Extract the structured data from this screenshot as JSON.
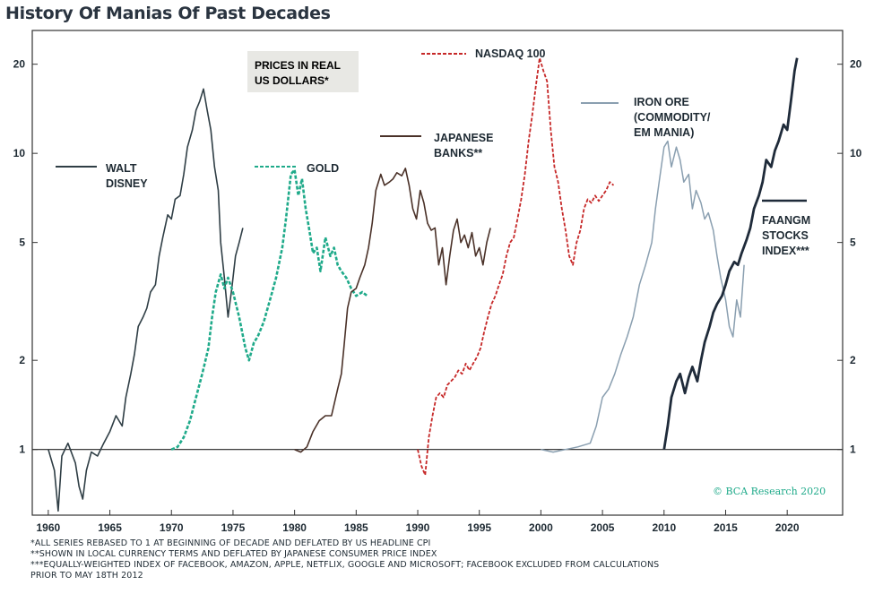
{
  "title": "History Of Manias Of Past Decades",
  "box_note": [
    "PRICES IN REAL",
    "US DOLLARS*"
  ],
  "watermark": "© BCA Research 2020",
  "footnotes": [
    "*ALL SERIES REBASED TO 1 AT BEGINNING OF DECADE AND DEFLATED BY US HEADLINE CPI",
    "**SHOWN IN LOCAL CURRENCY TERMS AND DEFLATED BY JAPANESE CONSUMER PRICE INDEX",
    "***EQUALLY-WEIGHTED INDEX OF FACEBOOK, AMAZON, APPLE, NETFLIX, GOOGLE AND MICROSOFT; FACEBOOK EXCLUDED FROM CALCULATIONS",
    "PRIOR TO MAY 18TH 2012"
  ],
  "colors": {
    "walt_disney": "#2f3e45",
    "gold": "#1faa8a",
    "japanese_banks": "#4a3128",
    "nasdaq": "#c62828",
    "iron_ore": "#8a9fb0",
    "faangm": "#1f2b3a",
    "axis": "#333333",
    "note_box": "#e8e8e4"
  },
  "chart_data": {
    "type": "line",
    "title": "History Of Manias Of Past Decades",
    "yscale": "log",
    "xlim": [
      1958.7,
      2024.5
    ],
    "ylim": [
      0.6,
      26
    ],
    "xticks": [
      "1960",
      "1965",
      "1970",
      "1975",
      "1980",
      "1985",
      "1990",
      "1995",
      "2000",
      "2005",
      "2010",
      "2015",
      "2020"
    ],
    "yticks": [
      "1",
      "2",
      "5",
      "10",
      "20"
    ],
    "series": [
      {
        "name": "WALT DISNEY",
        "style": "solid",
        "label": [
          "WALT",
          "DISNEY"
        ],
        "points": [
          [
            1960,
            1.0
          ],
          [
            1960.5,
            0.85
          ],
          [
            1960.8,
            0.62
          ],
          [
            1961.1,
            0.95
          ],
          [
            1961.6,
            1.05
          ],
          [
            1962.2,
            0.9
          ],
          [
            1962.5,
            0.75
          ],
          [
            1962.8,
            0.68
          ],
          [
            1963.1,
            0.85
          ],
          [
            1963.5,
            0.98
          ],
          [
            1964,
            0.95
          ],
          [
            1964.5,
            1.05
          ],
          [
            1965,
            1.15
          ],
          [
            1965.5,
            1.3
          ],
          [
            1966,
            1.2
          ],
          [
            1966.3,
            1.5
          ],
          [
            1966.7,
            1.8
          ],
          [
            1967,
            2.1
          ],
          [
            1967.3,
            2.6
          ],
          [
            1967.7,
            2.8
          ],
          [
            1968,
            3.0
          ],
          [
            1968.3,
            3.4
          ],
          [
            1968.7,
            3.6
          ],
          [
            1969,
            4.5
          ],
          [
            1969.3,
            5.2
          ],
          [
            1969.7,
            6.2
          ],
          [
            1970,
            6.0
          ],
          [
            1970.3,
            7.0
          ],
          [
            1970.7,
            7.2
          ],
          [
            1971,
            8.5
          ],
          [
            1971.3,
            10.5
          ],
          [
            1971.7,
            12.0
          ],
          [
            1972,
            14.0
          ],
          [
            1972.3,
            15.0
          ],
          [
            1972.6,
            16.5
          ],
          [
            1972.9,
            14.0
          ],
          [
            1973.2,
            12.0
          ],
          [
            1973.5,
            9.0
          ],
          [
            1973.8,
            7.5
          ],
          [
            1974,
            5.0
          ],
          [
            1974.3,
            3.8
          ],
          [
            1974.6,
            2.8
          ],
          [
            1974.9,
            3.5
          ],
          [
            1975.2,
            4.5
          ],
          [
            1975.5,
            5.0
          ],
          [
            1975.8,
            5.6
          ]
        ]
      },
      {
        "name": "GOLD",
        "style": "dashed",
        "label": [
          "GOLD"
        ],
        "points": [
          [
            1970,
            1.0
          ],
          [
            1970.5,
            1.02
          ],
          [
            1971,
            1.1
          ],
          [
            1971.5,
            1.25
          ],
          [
            1972,
            1.5
          ],
          [
            1972.5,
            1.8
          ],
          [
            1973,
            2.2
          ],
          [
            1973.3,
            2.8
          ],
          [
            1973.6,
            3.4
          ],
          [
            1974,
            3.9
          ],
          [
            1974.3,
            3.5
          ],
          [
            1974.6,
            3.8
          ],
          [
            1975,
            3.4
          ],
          [
            1975.5,
            2.8
          ],
          [
            1976,
            2.2
          ],
          [
            1976.3,
            2.0
          ],
          [
            1976.7,
            2.3
          ],
          [
            1977,
            2.4
          ],
          [
            1977.5,
            2.7
          ],
          [
            1978,
            3.2
          ],
          [
            1978.5,
            3.8
          ],
          [
            1979,
            4.8
          ],
          [
            1979.3,
            6.0
          ],
          [
            1979.7,
            8.5
          ],
          [
            1980,
            8.8
          ],
          [
            1980.3,
            7.2
          ],
          [
            1980.6,
            8.2
          ],
          [
            1980.9,
            6.5
          ],
          [
            1981.2,
            5.5
          ],
          [
            1981.5,
            4.6
          ],
          [
            1981.8,
            4.8
          ],
          [
            1982.1,
            4.0
          ],
          [
            1982.5,
            5.2
          ],
          [
            1982.9,
            4.5
          ],
          [
            1983.2,
            4.8
          ],
          [
            1983.5,
            4.2
          ],
          [
            1983.8,
            4.0
          ],
          [
            1984.2,
            3.8
          ],
          [
            1984.6,
            3.5
          ],
          [
            1985,
            3.3
          ],
          [
            1985.5,
            3.4
          ],
          [
            1985.9,
            3.3
          ]
        ]
      },
      {
        "name": "JAPANESE BANKS**",
        "style": "solid",
        "label": [
          "JAPANESE",
          "BANKS**"
        ],
        "points": [
          [
            1980,
            1.0
          ],
          [
            1980.5,
            0.98
          ],
          [
            1981,
            1.02
          ],
          [
            1981.5,
            1.15
          ],
          [
            1982,
            1.25
          ],
          [
            1982.5,
            1.3
          ],
          [
            1983,
            1.3
          ],
          [
            1983.5,
            1.6
          ],
          [
            1983.8,
            1.8
          ],
          [
            1984,
            2.2
          ],
          [
            1984.3,
            3.0
          ],
          [
            1984.6,
            3.4
          ],
          [
            1985,
            3.5
          ],
          [
            1985.3,
            3.8
          ],
          [
            1985.7,
            4.2
          ],
          [
            1986,
            4.8
          ],
          [
            1986.3,
            5.8
          ],
          [
            1986.6,
            7.5
          ],
          [
            1987,
            8.5
          ],
          [
            1987.3,
            7.8
          ],
          [
            1987.7,
            8.0
          ],
          [
            1988,
            8.2
          ],
          [
            1988.3,
            8.6
          ],
          [
            1988.7,
            8.4
          ],
          [
            1989,
            8.9
          ],
          [
            1989.3,
            7.8
          ],
          [
            1989.6,
            6.5
          ],
          [
            1989.9,
            6.0
          ],
          [
            1990.2,
            7.5
          ],
          [
            1990.5,
            6.8
          ],
          [
            1990.8,
            5.8
          ],
          [
            1991.1,
            5.5
          ],
          [
            1991.4,
            5.6
          ],
          [
            1991.7,
            4.2
          ],
          [
            1992,
            4.8
          ],
          [
            1992.3,
            3.6
          ],
          [
            1992.6,
            4.5
          ],
          [
            1992.9,
            5.5
          ],
          [
            1993.2,
            6.0
          ],
          [
            1993.5,
            5.0
          ],
          [
            1993.8,
            5.3
          ],
          [
            1994.1,
            4.8
          ],
          [
            1994.4,
            5.4
          ],
          [
            1994.7,
            4.5
          ],
          [
            1995,
            4.8
          ],
          [
            1995.3,
            4.2
          ],
          [
            1995.6,
            5.0
          ],
          [
            1995.9,
            5.6
          ]
        ]
      },
      {
        "name": "NASDAQ 100",
        "style": "dashed",
        "label": [
          "NASDAQ 100"
        ],
        "points": [
          [
            1990,
            1.0
          ],
          [
            1990.3,
            0.88
          ],
          [
            1990.6,
            0.82
          ],
          [
            1990.9,
            1.1
          ],
          [
            1991.2,
            1.3
          ],
          [
            1991.5,
            1.5
          ],
          [
            1991.8,
            1.55
          ],
          [
            1992.1,
            1.5
          ],
          [
            1992.4,
            1.65
          ],
          [
            1992.7,
            1.7
          ],
          [
            1993,
            1.75
          ],
          [
            1993.3,
            1.85
          ],
          [
            1993.6,
            1.8
          ],
          [
            1993.9,
            1.95
          ],
          [
            1994.2,
            1.85
          ],
          [
            1994.5,
            1.95
          ],
          [
            1994.8,
            2.05
          ],
          [
            1995.1,
            2.2
          ],
          [
            1995.4,
            2.5
          ],
          [
            1995.7,
            2.8
          ],
          [
            1996,
            3.1
          ],
          [
            1996.3,
            3.3
          ],
          [
            1996.6,
            3.6
          ],
          [
            1996.9,
            3.9
          ],
          [
            1997.2,
            4.5
          ],
          [
            1997.5,
            5.0
          ],
          [
            1997.8,
            5.2
          ],
          [
            1998.1,
            6.0
          ],
          [
            1998.4,
            7.0
          ],
          [
            1998.7,
            8.5
          ],
          [
            1999,
            11.0
          ],
          [
            1999.3,
            13.5
          ],
          [
            1999.6,
            17.0
          ],
          [
            1999.9,
            21.0
          ],
          [
            2000.2,
            19.0
          ],
          [
            2000.5,
            17.5
          ],
          [
            2000.8,
            12.0
          ],
          [
            2001.1,
            9.0
          ],
          [
            2001.4,
            8.0
          ],
          [
            2001.7,
            6.5
          ],
          [
            2002,
            5.5
          ],
          [
            2002.3,
            4.5
          ],
          [
            2002.6,
            4.2
          ],
          [
            2002.9,
            5.0
          ],
          [
            2003.2,
            5.5
          ],
          [
            2003.5,
            6.5
          ],
          [
            2003.8,
            7.0
          ],
          [
            2004.1,
            6.8
          ],
          [
            2004.4,
            7.2
          ],
          [
            2004.7,
            6.9
          ],
          [
            2005,
            7.2
          ],
          [
            2005.3,
            7.5
          ],
          [
            2005.6,
            8.0
          ],
          [
            2005.9,
            7.8
          ]
        ]
      },
      {
        "name": "IRON ORE (COMMODITY/ EM MANIA)",
        "style": "solid",
        "label": [
          "IRON ORE",
          "(COMMODITY/",
          "EM MANIA)"
        ],
        "points": [
          [
            2000,
            1.0
          ],
          [
            2001,
            0.98
          ],
          [
            2002,
            1.0
          ],
          [
            2003,
            1.02
          ],
          [
            2004,
            1.05
          ],
          [
            2004.5,
            1.2
          ],
          [
            2005,
            1.5
          ],
          [
            2005.5,
            1.6
          ],
          [
            2006,
            1.8
          ],
          [
            2006.5,
            2.1
          ],
          [
            2007,
            2.4
          ],
          [
            2007.5,
            2.8
          ],
          [
            2008,
            3.6
          ],
          [
            2008.5,
            4.2
          ],
          [
            2009,
            5.0
          ],
          [
            2009.3,
            6.5
          ],
          [
            2009.6,
            8.0
          ],
          [
            2010,
            10.5
          ],
          [
            2010.3,
            11.0
          ],
          [
            2010.6,
            9.0
          ],
          [
            2011,
            10.5
          ],
          [
            2011.3,
            9.5
          ],
          [
            2011.6,
            8.0
          ],
          [
            2012,
            8.5
          ],
          [
            2012.3,
            6.5
          ],
          [
            2012.6,
            7.5
          ],
          [
            2013,
            6.8
          ],
          [
            2013.3,
            6.0
          ],
          [
            2013.6,
            6.3
          ],
          [
            2014,
            5.5
          ],
          [
            2014.3,
            4.5
          ],
          [
            2014.6,
            3.8
          ],
          [
            2015,
            3.2
          ],
          [
            2015.3,
            2.6
          ],
          [
            2015.6,
            2.4
          ],
          [
            2015.9,
            3.2
          ],
          [
            2016.2,
            2.8
          ],
          [
            2016.5,
            4.2
          ]
        ]
      },
      {
        "name": "FAANGM STOCKS INDEX***",
        "style": "solid",
        "label": [
          "FAANGM",
          "STOCKS",
          "INDEX***"
        ],
        "points": [
          [
            2010,
            1.0
          ],
          [
            2010.3,
            1.2
          ],
          [
            2010.6,
            1.5
          ],
          [
            2011,
            1.7
          ],
          [
            2011.3,
            1.8
          ],
          [
            2011.7,
            1.55
          ],
          [
            2012,
            1.75
          ],
          [
            2012.3,
            1.9
          ],
          [
            2012.7,
            1.7
          ],
          [
            2013,
            2.0
          ],
          [
            2013.3,
            2.3
          ],
          [
            2013.7,
            2.6
          ],
          [
            2014,
            2.9
          ],
          [
            2014.3,
            3.1
          ],
          [
            2014.7,
            3.3
          ],
          [
            2015,
            3.6
          ],
          [
            2015.3,
            4.0
          ],
          [
            2015.7,
            4.3
          ],
          [
            2016,
            4.2
          ],
          [
            2016.3,
            4.6
          ],
          [
            2016.7,
            5.1
          ],
          [
            2017,
            5.6
          ],
          [
            2017.3,
            6.5
          ],
          [
            2017.7,
            7.2
          ],
          [
            2018,
            8.0
          ],
          [
            2018.3,
            9.5
          ],
          [
            2018.7,
            9.0
          ],
          [
            2019,
            10.2
          ],
          [
            2019.3,
            11.0
          ],
          [
            2019.7,
            12.5
          ],
          [
            2020,
            12.0
          ],
          [
            2020.3,
            15.0
          ],
          [
            2020.6,
            19.0
          ],
          [
            2020.8,
            21.0
          ]
        ]
      }
    ]
  }
}
